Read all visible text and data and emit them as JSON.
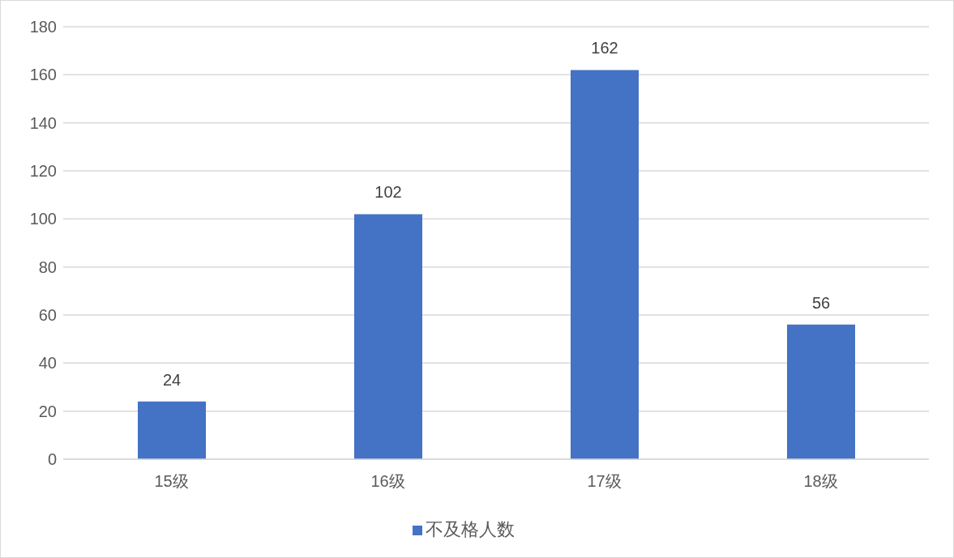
{
  "chart_data": {
    "type": "bar",
    "categories": [
      "15级",
      "16级",
      "17级",
      "18级"
    ],
    "series": [
      {
        "name": "不及格人数",
        "color": "#4472c4",
        "values": [
          24,
          102,
          162,
          56
        ]
      }
    ],
    "ylim": [
      0,
      180
    ],
    "yticks": [
      0,
      20,
      40,
      60,
      80,
      100,
      120,
      140,
      160,
      180
    ],
    "grid": "y",
    "legend": "bottom",
    "data_labels": true
  }
}
